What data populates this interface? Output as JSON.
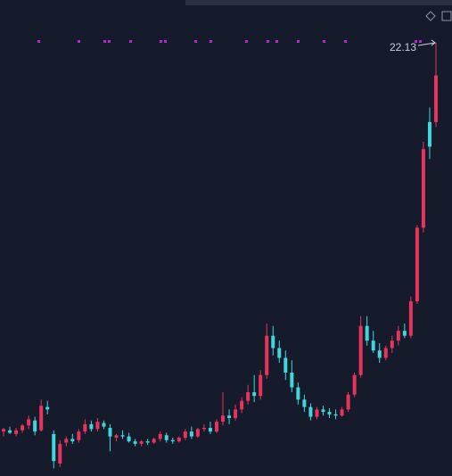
{
  "chart_data": {
    "type": "candlestick",
    "up_color": "#e8335c",
    "down_color": "#3fd6dc",
    "ylim": [
      4.49,
      23.87
    ],
    "open": [
      6.3,
      6.35,
      6.2,
      6.35,
      6.55,
      6.75,
      6.35,
      7.3,
      6.2,
      5.0,
      5.85,
      6.0,
      5.95,
      6.3,
      6.6,
      6.4,
      6.65,
      6.45,
      6.05,
      6.15,
      6.1,
      5.9,
      5.8,
      5.9,
      5.85,
      6.0,
      6.15,
      5.95,
      5.9,
      6.05,
      6.3,
      6.1,
      6.4,
      6.45,
      6.3,
      6.7,
      6.95,
      6.85,
      7.2,
      7.55,
      7.9,
      7.75,
      8.6,
      10.2,
      9.7,
      9.3,
      8.7,
      8.1,
      7.6,
      7.3,
      6.9,
      7.2,
      7.1,
      7.0,
      6.95,
      7.2,
      7.8,
      8.6,
      10.6,
      10.0,
      9.6,
      9.3,
      9.7,
      10.0,
      10.4,
      10.2,
      11.6,
      14.6,
      18.9,
      18.9
    ],
    "high": [
      6.45,
      6.5,
      6.45,
      6.6,
      6.95,
      6.9,
      7.6,
      7.55,
      6.35,
      5.95,
      6.1,
      6.2,
      6.4,
      6.8,
      6.75,
      6.85,
      6.75,
      6.6,
      6.2,
      6.35,
      6.25,
      6.0,
      5.95,
      6.0,
      6.05,
      6.3,
      6.25,
      6.05,
      6.1,
      6.4,
      6.5,
      6.45,
      6.6,
      6.7,
      6.8,
      7.9,
      7.2,
      7.4,
      7.7,
      8.2,
      8.6,
      8.8,
      10.7,
      10.6,
      10.0,
      9.6,
      9.2,
      8.3,
      7.8,
      7.45,
      7.3,
      7.35,
      7.25,
      7.2,
      7.3,
      7.9,
      8.7,
      11.0,
      11.0,
      10.4,
      9.9,
      9.8,
      10.2,
      10.6,
      10.7,
      11.8,
      14.7,
      18.1,
      19.5,
      22.13
    ],
    "low": [
      6.1,
      6.2,
      6.1,
      6.25,
      6.4,
      6.15,
      6.3,
      7.0,
      4.8,
      4.85,
      5.7,
      5.8,
      5.85,
      6.2,
      6.3,
      6.3,
      6.4,
      5.5,
      5.9,
      6.0,
      5.85,
      5.7,
      5.7,
      5.75,
      5.8,
      5.9,
      5.85,
      5.8,
      5.85,
      5.95,
      6.0,
      6.05,
      6.3,
      6.2,
      6.25,
      6.55,
      6.6,
      6.75,
      7.05,
      7.4,
      7.5,
      7.6,
      8.45,
      9.4,
      9.1,
      8.4,
      7.9,
      7.4,
      7.1,
      6.75,
      6.8,
      6.95,
      6.85,
      6.8,
      6.9,
      7.1,
      7.7,
      8.5,
      9.8,
      9.5,
      9.1,
      9.2,
      9.5,
      9.8,
      10.1,
      10.1,
      11.5,
      14.4,
      17.4,
      18.7
    ],
    "close": [
      6.4,
      6.25,
      6.35,
      6.55,
      6.8,
      6.3,
      7.35,
      7.2,
      5.1,
      5.8,
      6.0,
      5.9,
      6.3,
      6.6,
      6.4,
      6.7,
      6.5,
      6.1,
      6.15,
      6.1,
      5.9,
      5.8,
      5.9,
      5.85,
      6.0,
      6.2,
      5.95,
      5.9,
      6.05,
      6.3,
      6.1,
      6.4,
      6.45,
      6.3,
      6.7,
      6.95,
      6.85,
      7.2,
      7.55,
      7.9,
      7.75,
      8.6,
      10.2,
      9.7,
      9.3,
      8.7,
      8.1,
      7.6,
      7.3,
      6.9,
      7.2,
      7.1,
      7.0,
      6.95,
      7.2,
      7.8,
      8.6,
      10.6,
      10.0,
      9.6,
      9.3,
      9.7,
      10.0,
      10.4,
      10.2,
      11.6,
      14.6,
      17.8,
      17.9,
      20.8
    ]
  }
}
